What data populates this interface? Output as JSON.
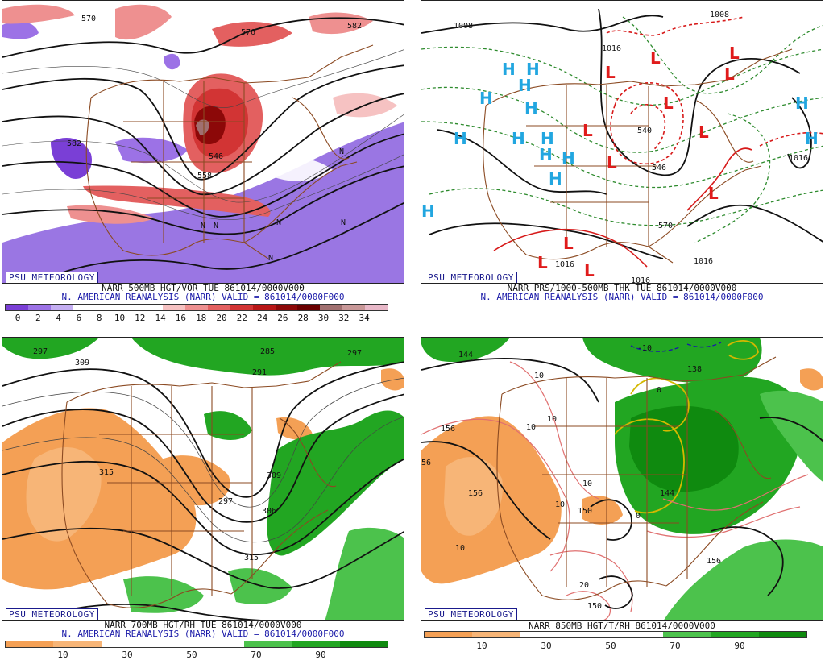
{
  "credit": "PSU METEOROLOGY",
  "panels": [
    {
      "id": "p1",
      "caption_line1": "NARR 500MB HGT/VOR TUE 861014/0000V000",
      "caption_line2": "N. AMERICAN REANALYSIS (NARR) VALID = 861014/0000F000",
      "colorbar": {
        "colors": [
          "#7a3fd6",
          "#9c72e6",
          "#c4aef2",
          "#ffffff",
          "#ffffff",
          "#ffffff",
          "#ffffff",
          "#f6c2c2",
          "#ee9090",
          "#e36060",
          "#d23434",
          "#b81616",
          "#8c0808",
          "#6a0000",
          "#a07070",
          "#c89898",
          "#e8b8c8"
        ],
        "tick_labels": [
          "0",
          "2",
          "4",
          "6",
          "8",
          "10",
          "12",
          "14",
          "16",
          "18",
          "20",
          "22",
          "24",
          "26",
          "28",
          "30",
          "32",
          "34"
        ]
      },
      "map_labels": [
        "570",
        "576",
        "582",
        "546",
        "558",
        "582",
        "N",
        "N",
        "N",
        "N",
        "N",
        "N"
      ]
    },
    {
      "id": "p2",
      "caption_line1": "NARR PRS/1000-500MB THK TUE 861014/0000V000",
      "caption_line2": "N. AMERICAN REANALYSIS (NARR) VALID = 861014/0000F000",
      "map_labels": [
        "1008",
        "1008",
        "1016",
        "1016",
        "1016",
        "1016",
        "1016",
        "546",
        "570",
        "540"
      ],
      "high_symbol": "H",
      "low_symbol": "L",
      "high_color": "#22a6e0",
      "low_color": "#e01b1b"
    },
    {
      "id": "p3",
      "caption_line1": "NARR 700MB HGT/RH TUE 861014/0000V000",
      "caption_line2": "N. AMERICAN REANALYSIS (NARR) VALID = 861014/0000F000",
      "colorbar": {
        "colors": [
          "#f4a055",
          "#f7b577",
          "#ffffff",
          "#ffffff",
          "#ffffff",
          "#4cc24c",
          "#22a622",
          "#0f8a0f"
        ],
        "tick_labels": [
          "10",
          "30",
          "50",
          "70",
          "90"
        ]
      },
      "map_labels": [
        "297",
        "309",
        "285",
        "291",
        "297",
        "315",
        "297",
        "306",
        "309",
        "315"
      ]
    },
    {
      "id": "p4",
      "caption_line1": "NARR 850MB HGT/T/RH 861014/0000V000",
      "colorbar": {
        "colors": [
          "#f4a055",
          "#f7b577",
          "#ffffff",
          "#ffffff",
          "#ffffff",
          "#4cc24c",
          "#22a622",
          "#0f8a0f"
        ],
        "tick_labels": [
          "10",
          "30",
          "50",
          "70",
          "90"
        ]
      },
      "map_labels": [
        "144",
        "-10",
        "138",
        "156",
        "156",
        "56",
        "150",
        "144",
        "150",
        "156",
        "10",
        "10",
        "10",
        "10",
        "10",
        "10",
        "20",
        "0",
        "0"
      ]
    }
  ]
}
